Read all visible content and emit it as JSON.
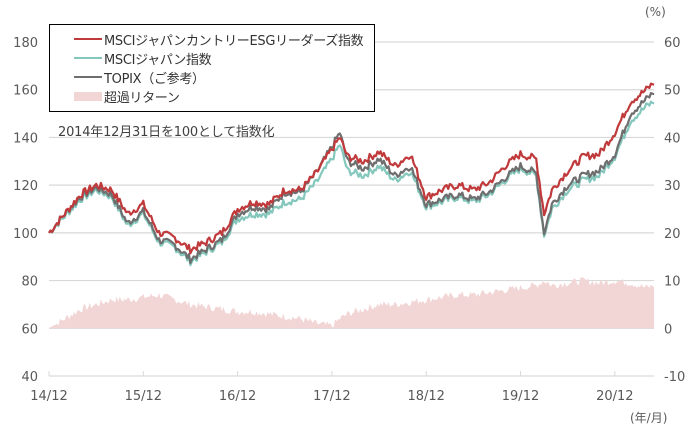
{
  "chart_data": {
    "type": "line",
    "title": "",
    "annotation": "2014年12月31日を100として指数化",
    "xlabel": "(年/月)",
    "ylabel_left": "",
    "ylabel_right": "(%)",
    "ylim_left": [
      40,
      180
    ],
    "ylim_right": [
      -10,
      60
    ],
    "yticks_left": [
      "40",
      "60",
      "80",
      "100",
      "120",
      "140",
      "160",
      "180"
    ],
    "yticks_right": [
      "-10",
      "0",
      "10",
      "20",
      "30",
      "40",
      "50",
      "60"
    ],
    "xticks": [
      "14/12",
      "15/12",
      "16/12",
      "17/12",
      "18/12",
      "19/12",
      "20/12"
    ],
    "grid": true,
    "legend_position": "top-left",
    "x": [
      "14/12",
      "15/02",
      "15/04",
      "15/06",
      "15/08",
      "15/10",
      "15/12",
      "16/02",
      "16/04",
      "16/06",
      "16/08",
      "16/10",
      "16/12",
      "17/02",
      "17/04",
      "17/06",
      "17/08",
      "17/10",
      "17/12",
      "18/01",
      "18/02",
      "18/04",
      "18/06",
      "18/08",
      "18/10",
      "18/12",
      "19/02",
      "19/04",
      "19/06",
      "19/08",
      "19/10",
      "19/12",
      "20/02",
      "20/03",
      "20/04",
      "20/06",
      "20/08",
      "20/10",
      "20/12",
      "21/02",
      "21/04",
      "21/05"
    ],
    "series": [
      {
        "name": "MSCIジャパンカントリーESGリーダーズ指数",
        "color": "#c0393b",
        "axis": "left",
        "values": [
          100,
          108,
          116,
          120,
          118,
          108,
          112,
          100,
          98,
          93,
          96,
          100,
          110,
          113,
          112,
          118,
          118,
          125,
          135,
          140,
          132,
          130,
          134,
          128,
          133,
          115,
          118,
          120,
          118,
          121,
          128,
          133,
          131,
          108,
          118,
          126,
          132,
          133,
          142,
          155,
          160,
          163
        ]
      },
      {
        "name": "MSCIジャパン指数",
        "color": "#84c8bd",
        "axis": "left",
        "values": [
          100,
          107,
          114,
          118,
          115,
          103,
          108,
          96,
          94,
          88,
          92,
          96,
          106,
          108,
          108,
          113,
          114,
          121,
          131,
          137,
          126,
          124,
          128,
          122,
          126,
          111,
          113,
          115,
          113,
          116,
          122,
          127,
          124,
          99,
          110,
          118,
          122,
          124,
          132,
          147,
          153,
          155
        ]
      },
      {
        "name": "TOPIX（ご参考）",
        "color": "#6e6e6e",
        "axis": "left",
        "values": [
          100,
          108,
          115,
          119,
          116,
          104,
          109,
          97,
          95,
          89,
          93,
          97,
          108,
          111,
          110,
          117,
          117,
          125,
          136,
          142,
          130,
          127,
          131,
          124,
          128,
          112,
          114,
          116,
          114,
          117,
          123,
          128,
          125,
          100,
          112,
          120,
          124,
          126,
          133,
          150,
          156,
          159
        ]
      },
      {
        "name": "超過リターン",
        "color": "#f2d6d6",
        "axis": "right",
        "type": "area",
        "values": [
          0,
          2,
          4,
          5,
          6,
          6,
          6.5,
          7,
          6,
          5,
          4.5,
          4,
          3.5,
          3.5,
          3,
          2.5,
          2,
          1,
          0.5,
          2,
          3,
          4,
          5,
          5,
          5.5,
          6,
          6.5,
          7,
          7,
          7.5,
          8,
          8.5,
          9,
          10,
          9,
          9.5,
          10,
          9.5,
          10,
          9.5,
          8.5,
          9
        ]
      }
    ]
  },
  "legend": {
    "items": [
      {
        "label": "MSCIジャパンカントリーESGリーダーズ指数"
      },
      {
        "label": "MSCIジャパン指数"
      },
      {
        "label": "TOPIX（ご参考）"
      },
      {
        "label": "超過リターン"
      }
    ]
  },
  "note": "2014年12月31日を100として指数化",
  "units": {
    "right": "(%)",
    "x": "(年/月)"
  }
}
